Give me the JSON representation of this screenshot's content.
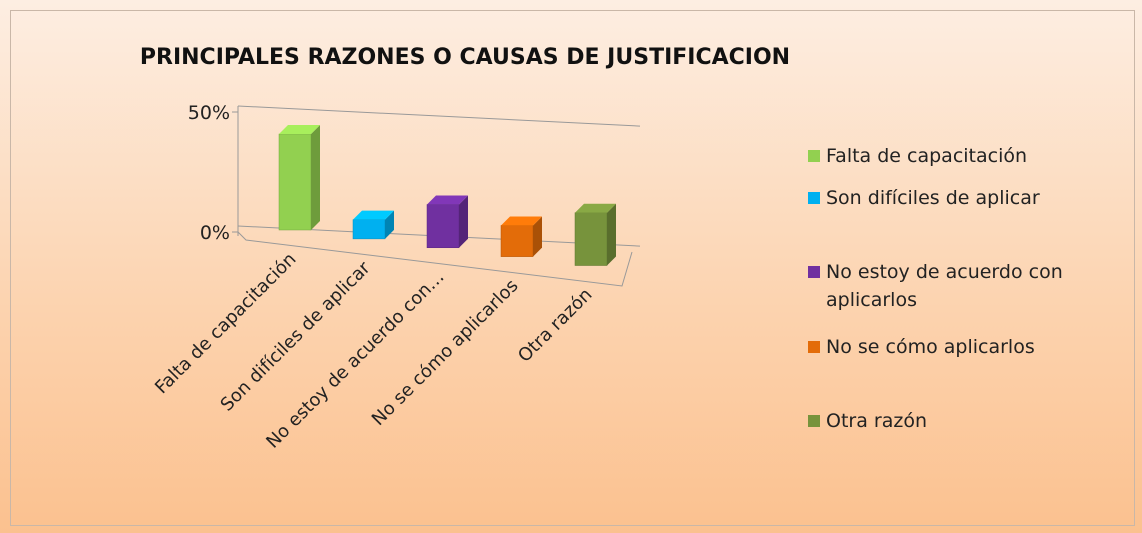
{
  "chart_data": {
    "type": "bar3d",
    "title": "PRINCIPALES RAZONES O CAUSAS DE JUSTIFICACION",
    "categories": [
      "Falta de capacitación",
      "Son difíciles de aplicar",
      "No estoy de acuerdo con…",
      "No se cómo aplicarlos",
      "Otra razón"
    ],
    "legend_labels": [
      "Falta de capacitación",
      "Son difíciles de aplicar",
      "No estoy de acuerdo con aplicarlos",
      "No se cómo aplicarlos",
      "Otra razón"
    ],
    "values": [
      40,
      8,
      18,
      13,
      22
    ],
    "colors": [
      "#92d050",
      "#00b0f0",
      "#7030a0",
      "#e36c09",
      "#77933c"
    ],
    "ylim": [
      0,
      50
    ],
    "yticks": [
      {
        "value": 0,
        "label": "0%"
      },
      {
        "value": 50,
        "label": "50%"
      }
    ],
    "grid": true,
    "legend": "right"
  }
}
